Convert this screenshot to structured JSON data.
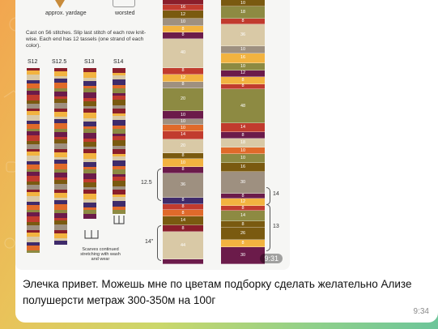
{
  "media": {
    "legend_left": "approx. yardage",
    "legend_right": "worsted",
    "note": "Cast on 56 stitches. Slip last stitch of each row knit-wise. Each end has 12 tassels (one strand of each color).",
    "columns": [
      "S12",
      "S12.5",
      "S13",
      "S14"
    ],
    "scarves_caption": "Scarves continued stretching with wash and wear",
    "duration": "9:31",
    "left_bracket_upper": "12.5",
    "left_bracket_lower": "14\"",
    "right_bracket_upper": "14",
    "right_bracket_lower": "13",
    "palette": [
      "#8a1e2b",
      "#c13b2e",
      "#e06a2a",
      "#f2b340",
      "#7a5a10",
      "#8d8a42",
      "#d9c9a6",
      "#9e9080",
      "#6b1b4a",
      "#3f2b6b",
      "#ffffff"
    ],
    "band_a": [
      {
        "v": "",
        "c": "#8a1e2b",
        "h": 6
      },
      {
        "v": "16",
        "c": "#c13b2e",
        "h": 8
      },
      {
        "v": "12",
        "c": "#7a5a10",
        "h": 10
      },
      {
        "v": "10",
        "c": "#9e9080",
        "h": 10
      },
      {
        "v": "8",
        "c": "#f2b340",
        "h": 8
      },
      {
        "v": "8",
        "c": "#6b1b4a",
        "h": 8
      },
      {
        "v": "40",
        "c": "#d9c9a6",
        "h": 38
      },
      {
        "v": "8",
        "c": "#c13b2e",
        "h": 8
      },
      {
        "v": "12",
        "c": "#f2b340",
        "h": 10
      },
      {
        "v": "8",
        "c": "#9e9080",
        "h": 8
      },
      {
        "v": "20",
        "c": "#8d8a42",
        "h": 30
      },
      {
        "v": "10",
        "c": "#6b1b4a",
        "h": 10
      },
      {
        "v": "10",
        "c": "#9e9080",
        "h": 8
      },
      {
        "v": "10",
        "c": "#e06a2a",
        "h": 8
      },
      {
        "v": "14",
        "c": "#c13b2e",
        "h": 10
      },
      {
        "v": "20",
        "c": "#d9c9a6",
        "h": 18
      },
      {
        "v": "8",
        "c": "#7a5a10",
        "h": 8
      },
      {
        "v": "10",
        "c": "#f2b340",
        "h": 10
      },
      {
        "v": "8",
        "c": "#6b1b4a",
        "h": 8
      },
      {
        "v": "36",
        "c": "#9e9080",
        "h": 32
      },
      {
        "v": "8",
        "c": "#3f2b6b",
        "h": 8
      },
      {
        "v": "8",
        "c": "#c13b2e",
        "h": 8
      },
      {
        "v": "8",
        "c": "#e06a2a",
        "h": 8
      },
      {
        "v": "14",
        "c": "#7a5a10",
        "h": 12
      },
      {
        "v": "8",
        "c": "#8a1e2b",
        "h": 8
      },
      {
        "v": "44",
        "c": "#d9c9a6",
        "h": 36
      },
      {
        "v": "",
        "c": "#6b1b4a",
        "h": 6
      }
    ],
    "band_b": [
      {
        "v": "10",
        "c": "#7a5a10",
        "h": 8
      },
      {
        "v": "18",
        "c": "#8d8a42",
        "h": 14
      },
      {
        "v": "8",
        "c": "#c13b2e",
        "h": 6
      },
      {
        "v": "36",
        "c": "#d9c9a6",
        "h": 26
      },
      {
        "v": "10",
        "c": "#9e9080",
        "h": 8
      },
      {
        "v": "16",
        "c": "#f2b340",
        "h": 12
      },
      {
        "v": "10",
        "c": "#8d8a42",
        "h": 8
      },
      {
        "v": "12",
        "c": "#6b1b4a",
        "h": 8
      },
      {
        "v": "8",
        "c": "#f2b340",
        "h": 8
      },
      {
        "v": "8",
        "c": "#c13b2e",
        "h": 6
      },
      {
        "v": "48",
        "c": "#8d8a42",
        "h": 40
      },
      {
        "v": "14",
        "c": "#c13b2e",
        "h": 10
      },
      {
        "v": "8",
        "c": "#6b1b4a",
        "h": 8
      },
      {
        "v": "18",
        "c": "#d9c9a6",
        "h": 10
      },
      {
        "v": "10",
        "c": "#e06a2a",
        "h": 8
      },
      {
        "v": "10",
        "c": "#8d8a42",
        "h": 10
      },
      {
        "v": "16",
        "c": "#7a5a10",
        "h": 10
      },
      {
        "v": "30",
        "c": "#9e9080",
        "h": 26
      },
      {
        "v": "8",
        "c": "#6b1b4a",
        "h": 6
      },
      {
        "v": "12",
        "c": "#f2b340",
        "h": 8
      },
      {
        "v": "8",
        "c": "#c13b2e",
        "h": 6
      },
      {
        "v": "14",
        "c": "#8d8a42",
        "h": 12
      },
      {
        "v": "8",
        "c": "#7a5a10",
        "h": 8
      },
      {
        "v": "26",
        "c": "#7a5a10",
        "h": 14
      },
      {
        "v": "8",
        "c": "#f2b340",
        "h": 8
      },
      {
        "v": "30",
        "c": "#6b1b4a",
        "h": 20
      }
    ]
  },
  "message": {
    "text": "Элечка привет. Можешь мне по цветам подборку сделать желательно Ализе полушерсти метраж 300-350м на 100г",
    "time": "9:34"
  }
}
